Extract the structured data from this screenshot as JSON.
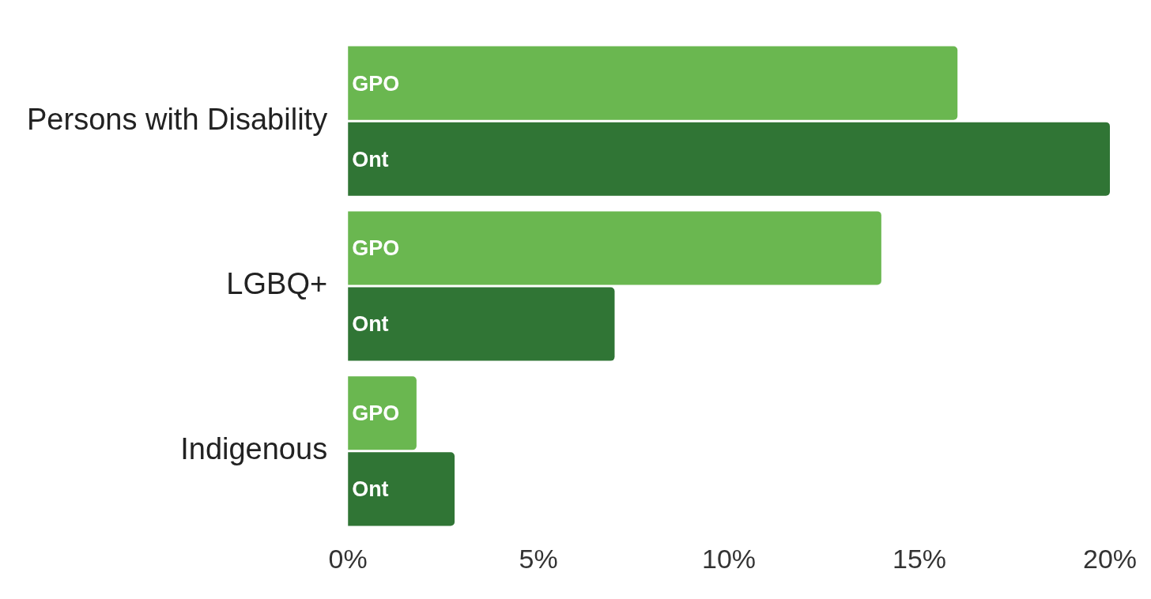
{
  "chart_data": {
    "type": "bar",
    "orientation": "horizontal",
    "categories": [
      "Persons with Disability",
      "LGBQ+",
      "Indigenous"
    ],
    "series": [
      {
        "name": "GPO",
        "color": "#6ab750",
        "values": [
          16,
          14,
          1.8
        ]
      },
      {
        "name": "Ont",
        "color": "#307535",
        "values": [
          20,
          7,
          2.8
        ]
      }
    ],
    "xlim": [
      0,
      20
    ],
    "xticks": [
      {
        "value": 0,
        "label": "0%"
      },
      {
        "value": 5,
        "label": "5%"
      },
      {
        "value": 10,
        "label": "10%"
      },
      {
        "value": 15,
        "label": "15%"
      },
      {
        "value": 20,
        "label": "20%"
      }
    ],
    "grid": false
  }
}
